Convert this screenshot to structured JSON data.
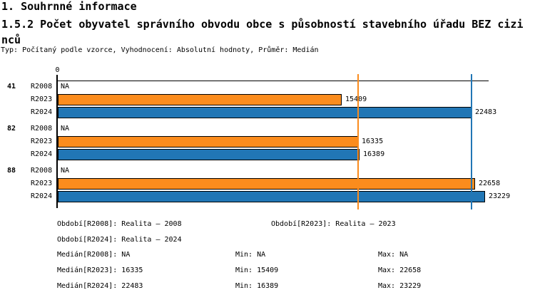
{
  "header": {
    "section_title": "1. Souhrnné informace",
    "chart_title": "1.5.2 Počet obyvatel správního obvodu obce s působností stavebního úřadu BEZ cizinců",
    "meta_line": "Typ: Počítaný podle vzorce, Vyhodnocení: Absolutní hodnoty, Průměr: Medián"
  },
  "chart_data": {
    "type": "bar",
    "orientation": "horizontal",
    "title": "1.5.2 Počet obyvatel správního obvodu obce s působností stavebního úřadu BEZ cizinců",
    "x_axis": {
      "tick_labels": [
        "0"
      ],
      "min": 0
    },
    "grid": false,
    "legend_position": "bottom",
    "na_label": "NA",
    "categories": [
      "41",
      "82",
      "88"
    ],
    "series": [
      {
        "name": "R2008",
        "color": null,
        "values": [
          null,
          null,
          null
        ]
      },
      {
        "name": "R2023",
        "color": "#FB8C1D",
        "values": [
          15409,
          16335,
          22658
        ]
      },
      {
        "name": "R2024",
        "color": "#2176B5",
        "values": [
          22483,
          16389,
          23229
        ]
      }
    ],
    "median_lines": [
      {
        "series": "R2023",
        "value": 16335,
        "color": "#FB8C1D"
      },
      {
        "series": "R2024",
        "value": 22483,
        "color": "#2176B5"
      }
    ]
  },
  "legend": {
    "items": [
      "Období[R2008]: Realita – 2008",
      "Období[R2023]: Realita – 2023",
      "Období[R2024]: Realita – 2024"
    ]
  },
  "stats": {
    "rows": [
      {
        "median": "Medián[R2008]: NA",
        "min": "Min: NA",
        "max": "Max: NA"
      },
      {
        "median": "Medián[R2023]: 16335",
        "min": "Min: 15409",
        "max": "Max: 22658"
      },
      {
        "median": "Medián[R2024]: 22483",
        "min": "Min: 16389",
        "max": "Max: 23229"
      }
    ]
  },
  "colors": {
    "r2023_orange": "#FB8C1D",
    "r2024_blue": "#2176B5",
    "axis_black": "#000000"
  }
}
